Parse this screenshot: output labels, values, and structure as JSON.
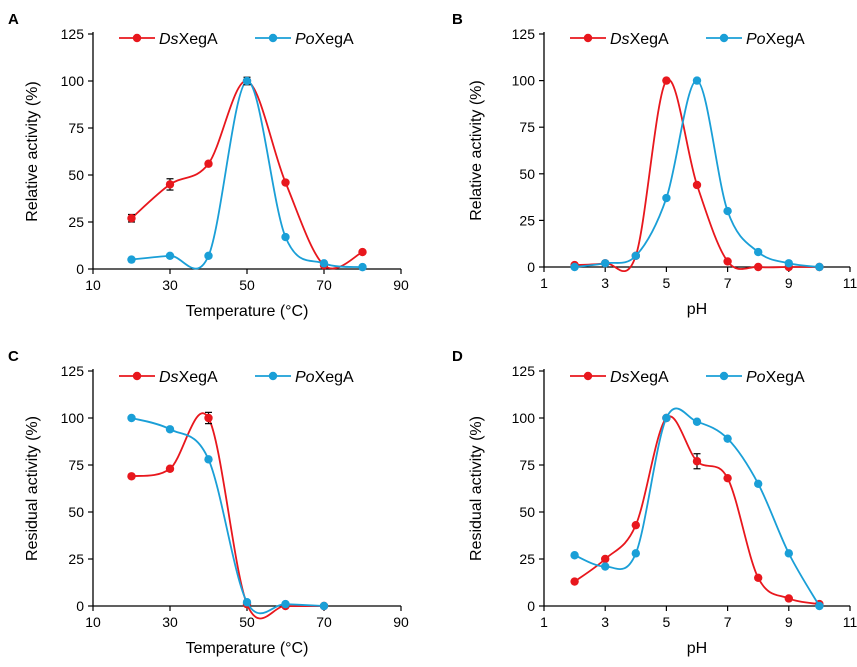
{
  "figure": {
    "colors": {
      "ds": "#e8171d",
      "po": "#1a9fd7",
      "axis": "#000000"
    }
  },
  "chart_data": [
    {
      "panel": "A",
      "type": "line",
      "xlabel": "Temperature (°C)",
      "ylabel": "Relative activity (%)",
      "xlim": [
        10,
        90
      ],
      "ylim": [
        0,
        125
      ],
      "xticks": [
        10,
        30,
        50,
        70,
        90
      ],
      "yticks": [
        0,
        25,
        50,
        75,
        100,
        125
      ],
      "grid": false,
      "legend": "top-left",
      "series": [
        {
          "name_italic": "Ds",
          "name_rest": "XegA",
          "key": "ds",
          "x": [
            20,
            30,
            40,
            50,
            60,
            70,
            80
          ],
          "y": [
            27,
            45,
            56,
            100,
            46,
            2,
            9
          ],
          "err": [
            2,
            3,
            0,
            0,
            0,
            0,
            0
          ]
        },
        {
          "name_italic": "Po",
          "name_rest": "XegA",
          "key": "po",
          "x": [
            20,
            30,
            40,
            50,
            60,
            70,
            80
          ],
          "y": [
            5,
            7,
            7,
            100,
            17,
            3,
            1
          ],
          "err": [
            0,
            0,
            0,
            2,
            0,
            0,
            0
          ]
        }
      ]
    },
    {
      "panel": "B",
      "type": "line",
      "xlabel": "pH",
      "ylabel": "Relative activity (%)",
      "xlim": [
        1,
        11
      ],
      "ylim": [
        0,
        125
      ],
      "xticks": [
        1,
        3,
        5,
        7,
        9,
        11
      ],
      "yticks": [
        0,
        25,
        50,
        75,
        100,
        125
      ],
      "grid": false,
      "legend": "top-left",
      "series": [
        {
          "name_italic": "Ds",
          "name_rest": "XegA",
          "key": "ds",
          "x": [
            2,
            3,
            4,
            5,
            6,
            7,
            8,
            9,
            10
          ],
          "y": [
            1,
            2,
            6,
            100,
            44,
            3,
            0,
            0,
            0
          ],
          "err": [
            0,
            0,
            0,
            0,
            0,
            0,
            0,
            0,
            0
          ]
        },
        {
          "name_italic": "Po",
          "name_rest": "XegA",
          "key": "po",
          "x": [
            2,
            3,
            4,
            5,
            6,
            7,
            8,
            9,
            10
          ],
          "y": [
            0,
            2,
            6,
            37,
            100,
            30,
            8,
            2,
            0
          ],
          "err": [
            0,
            0,
            0,
            0,
            0,
            0,
            0,
            0,
            0
          ]
        }
      ]
    },
    {
      "panel": "C",
      "type": "line",
      "xlabel": "Temperature (°C)",
      "ylabel": "Residual activity (%)",
      "xlim": [
        10,
        90
      ],
      "ylim": [
        0,
        125
      ],
      "xticks": [
        10,
        30,
        50,
        70,
        90
      ],
      "yticks": [
        0,
        25,
        50,
        75,
        100,
        125
      ],
      "grid": false,
      "legend": "top-left",
      "series": [
        {
          "name_italic": "Ds",
          "name_rest": "XegA",
          "key": "ds",
          "x": [
            20,
            30,
            40,
            50,
            60,
            70
          ],
          "y": [
            69,
            73,
            100,
            1,
            0,
            0
          ],
          "err": [
            0,
            0,
            3,
            0,
            0,
            0
          ]
        },
        {
          "name_italic": "Po",
          "name_rest": "XegA",
          "key": "po",
          "x": [
            20,
            30,
            40,
            50,
            60,
            70
          ],
          "y": [
            100,
            94,
            78,
            2,
            1,
            0
          ],
          "err": [
            0,
            0,
            0,
            0,
            0,
            0
          ]
        }
      ]
    },
    {
      "panel": "D",
      "type": "line",
      "xlabel": "pH",
      "ylabel": "Residual activity (%)",
      "xlim": [
        1,
        11
      ],
      "ylim": [
        0,
        125
      ],
      "xticks": [
        1,
        3,
        5,
        7,
        9,
        11
      ],
      "yticks": [
        0,
        25,
        50,
        75,
        100,
        125
      ],
      "grid": false,
      "legend": "top-left",
      "series": [
        {
          "name_italic": "Ds",
          "name_rest": "XegA",
          "key": "ds",
          "x": [
            2,
            3,
            4,
            5,
            6,
            7,
            8,
            9,
            10
          ],
          "y": [
            13,
            25,
            43,
            100,
            77,
            68,
            15,
            4,
            1
          ],
          "err": [
            0,
            0,
            0,
            0,
            4,
            0,
            0,
            0,
            0
          ]
        },
        {
          "name_italic": "Po",
          "name_rest": "XegA",
          "key": "po",
          "x": [
            2,
            3,
            4,
            5,
            6,
            7,
            8,
            9,
            10
          ],
          "y": [
            27,
            21,
            28,
            100,
            98,
            89,
            65,
            28,
            0
          ],
          "err": [
            0,
            0,
            0,
            0,
            0,
            0,
            0,
            0,
            0
          ]
        }
      ]
    }
  ]
}
